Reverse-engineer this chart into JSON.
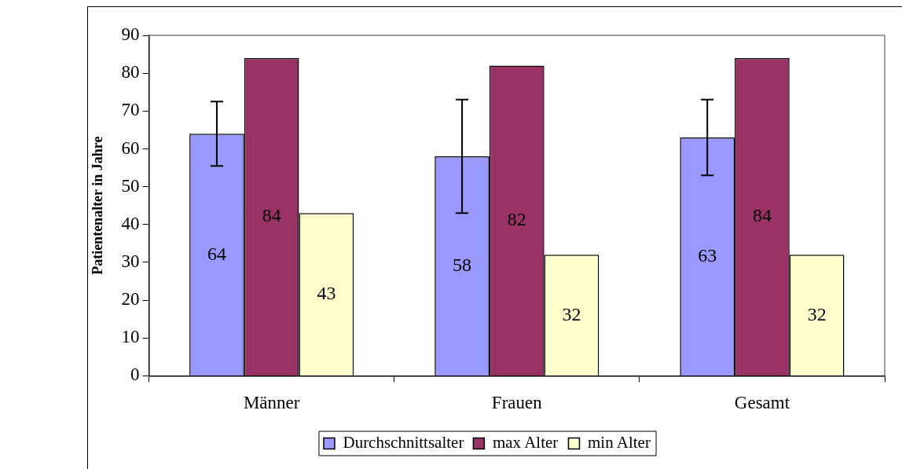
{
  "chart_data": {
    "type": "bar",
    "ylabel": "Patientenalter in Jahre",
    "categories": [
      "Männer",
      "Frauen",
      "Gesamt"
    ],
    "series": [
      {
        "name": "Durchschnittsalter",
        "color": "#9999ff",
        "values": [
          64,
          58,
          63
        ],
        "errors": [
          8.5,
          15,
          10
        ]
      },
      {
        "name": "max Alter",
        "color": "#993366",
        "values": [
          84,
          82,
          84
        ]
      },
      {
        "name": "min Alter",
        "color": "#ffffcc",
        "values": [
          43,
          32,
          32
        ]
      }
    ],
    "ylim": [
      0,
      90
    ],
    "yticks": [
      0,
      10,
      20,
      30,
      40,
      50,
      60,
      70,
      80,
      90
    ],
    "grid": false,
    "legend": "bottom",
    "data_labels": true
  }
}
